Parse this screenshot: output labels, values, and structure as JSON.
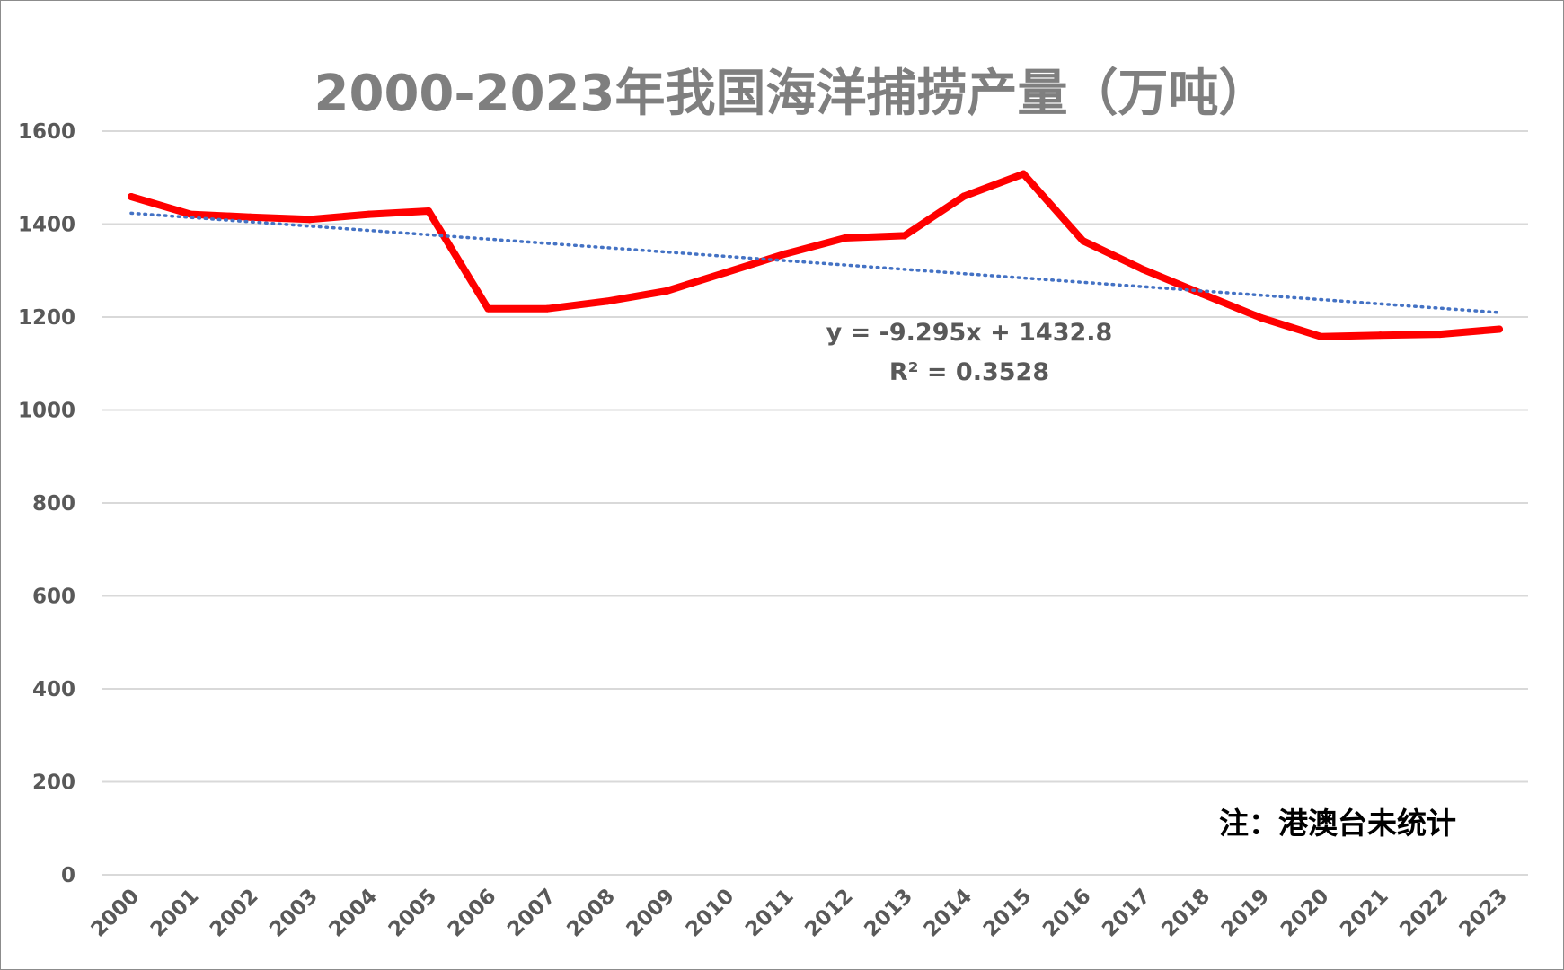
{
  "chart_data": {
    "type": "line",
    "title": "2000-2023年我国海洋捕捞产量（万吨）",
    "categories": [
      "2000",
      "2001",
      "2002",
      "2003",
      "2004",
      "2005",
      "2006",
      "2007",
      "2008",
      "2009",
      "2010",
      "2011",
      "2012",
      "2013",
      "2014",
      "2015",
      "2016",
      "2017",
      "2018",
      "2019",
      "2020",
      "2021",
      "2022",
      "2023"
    ],
    "series": [
      {
        "values": [
          1459,
          1421,
          1415,
          1410,
          1421,
          1428,
          1218,
          1218,
          1234,
          1256,
          1296,
          1336,
          1370,
          1375,
          1460,
          1508,
          1364,
          1303,
          1250,
          1198,
          1158,
          1161,
          1163,
          1174
        ],
        "color": "#ff0000"
      }
    ],
    "trendline": {
      "type": "linear",
      "slope": -9.295,
      "intercept": 1432.8,
      "equation_label": "y = -9.295x + 1432.8",
      "r2_label": "R² = 0.3528",
      "color": "#4472c4",
      "style": "dotted"
    },
    "ylim": [
      0,
      1600
    ],
    "yticks": [
      "0",
      "200",
      "400",
      "600",
      "800",
      "1000",
      "1200",
      "1400",
      "1600"
    ],
    "grid": true,
    "xlabel": "",
    "ylabel": "",
    "note": "注：港澳台未统计"
  }
}
